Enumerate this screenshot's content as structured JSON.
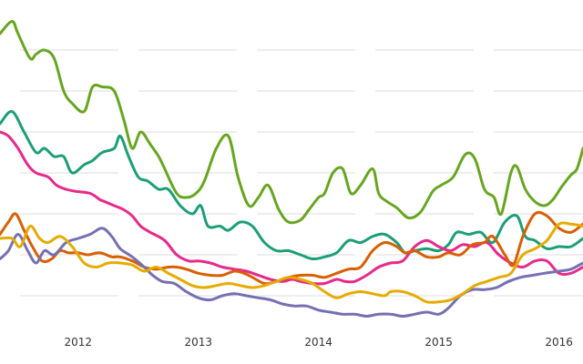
{
  "chart_data": {
    "type": "line",
    "title": "",
    "xlabel": "",
    "ylabel": "",
    "grid": true,
    "x_ticks": [
      2012,
      2013,
      2014,
      2015,
      2016
    ],
    "x_tick_labels": [
      "2012",
      "2013",
      "2014",
      "2015",
      "2016"
    ],
    "xlim": [
      2011.35,
      2016.2
    ],
    "ylim": [
      0,
      8
    ],
    "y_gridlines": [
      1,
      2,
      3,
      4,
      5,
      6,
      7
    ],
    "series": [
      {
        "color": "#66a61e",
        "x": [
          2011.35,
          2011.45,
          2011.5,
          2011.6,
          2011.65,
          2011.72,
          2011.8,
          2011.88,
          2011.95,
          2012.05,
          2012.12,
          2012.2,
          2012.3,
          2012.38,
          2012.45,
          2012.52,
          2012.6,
          2012.67,
          2012.72,
          2012.82,
          2012.9,
          2012.98,
          2013.05,
          2013.15,
          2013.25,
          2013.33,
          2013.42,
          2013.5,
          2013.58,
          2013.67,
          2013.75,
          2013.85,
          2013.92,
          2014.0,
          2014.05,
          2014.12,
          2014.2,
          2014.27,
          2014.35,
          2014.45,
          2014.5,
          2014.57,
          2014.65,
          2014.75,
          2014.85,
          2014.95,
          2015.02,
          2015.12,
          2015.22,
          2015.3,
          2015.38,
          2015.46,
          2015.52,
          2015.6,
          2015.65,
          2015.72,
          2015.8,
          2015.88,
          2015.95,
          2016.02,
          2016.1,
          2016.15,
          2016.2
        ],
        "y": [
          7.4,
          7.7,
          7.4,
          6.8,
          6.9,
          7.0,
          6.8,
          6.0,
          5.7,
          5.5,
          6.1,
          6.1,
          6.0,
          5.3,
          4.6,
          5.0,
          4.7,
          4.4,
          4.1,
          3.5,
          3.4,
          3.5,
          3.8,
          4.6,
          4.9,
          3.9,
          3.2,
          3.4,
          3.7,
          3.1,
          2.8,
          2.85,
          3.1,
          3.4,
          3.5,
          4.0,
          4.1,
          3.5,
          3.7,
          4.1,
          3.5,
          3.3,
          3.15,
          2.9,
          3.05,
          3.55,
          3.7,
          3.9,
          4.45,
          4.35,
          3.6,
          3.4,
          3.0,
          4.0,
          4.15,
          3.6,
          3.3,
          3.2,
          3.35,
          3.65,
          3.95,
          4.1,
          4.6
        ]
      },
      {
        "color": "#1b9e77",
        "x": [
          2011.35,
          2011.45,
          2011.55,
          2011.65,
          2011.72,
          2011.8,
          2011.88,
          2011.95,
          2012.05,
          2012.12,
          2012.2,
          2012.3,
          2012.35,
          2012.42,
          2012.5,
          2012.58,
          2012.67,
          2012.75,
          2012.85,
          2012.95,
          2013.02,
          2013.08,
          2013.18,
          2013.25,
          2013.35,
          2013.45,
          2013.55,
          2013.65,
          2013.75,
          2013.85,
          2013.95,
          2014.05,
          2014.15,
          2014.25,
          2014.35,
          2014.45,
          2014.55,
          2014.65,
          2014.72,
          2014.8,
          2014.9,
          2015.0,
          2015.08,
          2015.15,
          2015.25,
          2015.35,
          2015.45,
          2015.55,
          2015.65,
          2015.72,
          2015.8,
          2015.9,
          2016.0,
          2016.1,
          2016.2
        ],
        "y": [
          5.2,
          5.5,
          5.0,
          4.5,
          4.6,
          4.4,
          4.4,
          4.0,
          4.2,
          4.3,
          4.5,
          4.6,
          4.9,
          4.4,
          3.9,
          3.8,
          3.6,
          3.6,
          3.2,
          3.0,
          3.2,
          2.7,
          2.7,
          2.6,
          2.8,
          2.7,
          2.3,
          2.1,
          2.1,
          2.0,
          1.9,
          1.95,
          2.05,
          2.35,
          2.3,
          2.45,
          2.5,
          2.3,
          2.05,
          2.1,
          2.15,
          2.1,
          2.25,
          2.55,
          2.5,
          2.55,
          2.3,
          2.8,
          2.95,
          2.45,
          2.35,
          2.15,
          2.2,
          2.2,
          2.4
        ]
      },
      {
        "color": "#e7298a",
        "x": [
          2011.35,
          2011.42,
          2011.5,
          2011.58,
          2011.65,
          2011.75,
          2011.82,
          2011.9,
          2011.98,
          2012.1,
          2012.18,
          2012.22,
          2012.3,
          2012.38,
          2012.45,
          2012.52,
          2012.6,
          2012.72,
          2012.82,
          2012.92,
          2013.0,
          2013.1,
          2013.2,
          2013.3,
          2013.4,
          2013.5,
          2013.6,
          2013.7,
          2013.78,
          2013.85,
          2013.95,
          2014.05,
          2014.15,
          2014.22,
          2014.3,
          2014.4,
          2014.5,
          2014.6,
          2014.7,
          2014.8,
          2014.9,
          2015.0,
          2015.1,
          2015.2,
          2015.3,
          2015.4,
          2015.5,
          2015.6,
          2015.7,
          2015.8,
          2015.9,
          2016.0,
          2016.1,
          2016.2
        ],
        "y": [
          5.0,
          4.9,
          4.6,
          4.2,
          4.0,
          3.9,
          3.7,
          3.6,
          3.55,
          3.5,
          3.35,
          3.3,
          3.2,
          3.1,
          2.95,
          2.7,
          2.55,
          2.35,
          2.0,
          1.85,
          1.85,
          1.8,
          1.7,
          1.65,
          1.6,
          1.5,
          1.4,
          1.35,
          1.4,
          1.35,
          1.3,
          1.3,
          1.4,
          1.35,
          1.35,
          1.5,
          1.7,
          1.8,
          1.85,
          2.2,
          2.35,
          2.2,
          2.1,
          2.25,
          2.2,
          2.3,
          2.0,
          1.8,
          1.7,
          1.85,
          1.85,
          1.55,
          1.55,
          1.7
        ]
      },
      {
        "color": "#d95f02",
        "x": [
          2011.35,
          2011.42,
          2011.48,
          2011.55,
          2011.62,
          2011.7,
          2011.78,
          2011.85,
          2011.92,
          2012.0,
          2012.08,
          2012.18,
          2012.28,
          2012.35,
          2012.45,
          2012.55,
          2012.65,
          2012.75,
          2012.82,
          2012.9,
          2013.0,
          2013.1,
          2013.2,
          2013.3,
          2013.38,
          2013.45,
          2013.55,
          2013.65,
          2013.75,
          2013.85,
          2013.95,
          2014.05,
          2014.15,
          2014.25,
          2014.35,
          2014.45,
          2014.55,
          2014.65,
          2014.72,
          2014.8,
          2014.9,
          2015.0,
          2015.08,
          2015.18,
          2015.28,
          2015.38,
          2015.45,
          2015.55,
          2015.62,
          2015.7,
          2015.8,
          2015.9,
          2016.0,
          2016.1,
          2016.2
        ],
        "y": [
          2.5,
          2.8,
          3.0,
          2.6,
          2.2,
          1.85,
          1.9,
          2.1,
          2.05,
          2.05,
          2.0,
          2.05,
          1.95,
          1.95,
          1.85,
          1.7,
          1.65,
          1.7,
          1.7,
          1.65,
          1.55,
          1.5,
          1.5,
          1.6,
          1.55,
          1.45,
          1.3,
          1.35,
          1.45,
          1.5,
          1.5,
          1.45,
          1.55,
          1.65,
          1.7,
          2.1,
          2.3,
          2.2,
          2.05,
          2.1,
          1.95,
          1.95,
          2.05,
          2.0,
          2.25,
          2.3,
          2.45,
          2.0,
          1.75,
          2.45,
          3.0,
          2.95,
          2.65,
          2.55,
          2.75
        ]
      },
      {
        "color": "#7570b3",
        "x": [
          2011.35,
          2011.42,
          2011.5,
          2011.58,
          2011.65,
          2011.72,
          2011.8,
          2011.9,
          2012.0,
          2012.1,
          2012.2,
          2012.28,
          2012.35,
          2012.45,
          2012.55,
          2012.62,
          2012.7,
          2012.8,
          2012.9,
          2013.0,
          2013.1,
          2013.2,
          2013.3,
          2013.4,
          2013.5,
          2013.6,
          2013.7,
          2013.8,
          2013.9,
          2014.0,
          2014.1,
          2014.2,
          2014.3,
          2014.4,
          2014.5,
          2014.6,
          2014.7,
          2014.8,
          2014.9,
          2015.0,
          2015.08,
          2015.18,
          2015.28,
          2015.38,
          2015.48,
          2015.58,
          2015.68,
          2015.78,
          2015.88,
          2016.0,
          2016.1,
          2016.2
        ],
        "y": [
          1.9,
          2.1,
          2.5,
          2.1,
          1.8,
          2.1,
          2.0,
          2.3,
          2.4,
          2.5,
          2.65,
          2.45,
          2.15,
          1.95,
          1.7,
          1.5,
          1.35,
          1.3,
          1.1,
          0.95,
          0.9,
          1.0,
          1.05,
          1.0,
          0.95,
          0.9,
          0.8,
          0.75,
          0.75,
          0.65,
          0.6,
          0.55,
          0.55,
          0.5,
          0.55,
          0.55,
          0.5,
          0.55,
          0.6,
          0.55,
          0.7,
          1.0,
          1.15,
          1.15,
          1.2,
          1.35,
          1.45,
          1.5,
          1.55,
          1.6,
          1.65,
          1.8
        ]
      },
      {
        "color": "#e6ab02",
        "x": [
          2011.35,
          2011.45,
          2011.52,
          2011.6,
          2011.68,
          2011.75,
          2011.85,
          2011.95,
          2012.05,
          2012.15,
          2012.25,
          2012.35,
          2012.45,
          2012.55,
          2012.65,
          2012.75,
          2012.85,
          2012.95,
          2013.05,
          2013.15,
          2013.25,
          2013.35,
          2013.45,
          2013.55,
          2013.65,
          2013.75,
          2013.85,
          2013.95,
          2014.05,
          2014.15,
          2014.25,
          2014.35,
          2014.45,
          2014.55,
          2014.6,
          2014.7,
          2014.8,
          2014.9,
          2015.0,
          2015.1,
          2015.2,
          2015.3,
          2015.4,
          2015.5,
          2015.6,
          2015.7,
          2015.8,
          2015.9,
          2016.0,
          2016.1,
          2016.2
        ],
        "y": [
          2.4,
          2.4,
          2.2,
          2.7,
          2.4,
          2.3,
          2.45,
          2.2,
          1.8,
          1.7,
          1.8,
          1.8,
          1.75,
          1.6,
          1.7,
          1.55,
          1.4,
          1.25,
          1.2,
          1.25,
          1.3,
          1.25,
          1.2,
          1.25,
          1.35,
          1.45,
          1.4,
          1.3,
          1.1,
          0.95,
          1.05,
          1.1,
          1.05,
          1.0,
          1.1,
          1.1,
          1.0,
          0.85,
          0.85,
          0.9,
          1.05,
          1.25,
          1.35,
          1.45,
          1.55,
          2.0,
          2.15,
          2.35,
          2.75,
          2.75,
          2.7
        ]
      }
    ]
  }
}
